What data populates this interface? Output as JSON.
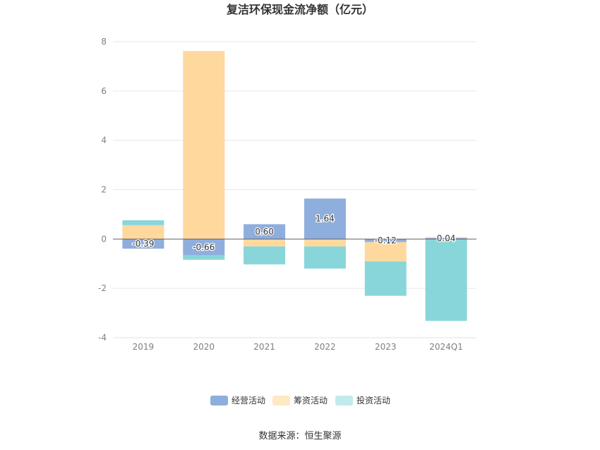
{
  "chart_data": {
    "type": "bar",
    "stacked": true,
    "title": "复洁环保现金流净额（亿元）",
    "categories": [
      "2019",
      "2020",
      "2021",
      "2022",
      "2023",
      "2024Q1"
    ],
    "series": [
      {
        "name": "经营活动",
        "color": "#8eaedd",
        "values": [
          -0.39,
          -0.66,
          0.6,
          1.64,
          -0.12,
          0.04
        ]
      },
      {
        "name": "筹资活动",
        "color": "#ffd89d",
        "values": [
          0.56,
          7.62,
          -0.3,
          -0.3,
          -0.79,
          0.04
        ]
      },
      {
        "name": "投资活动",
        "color": "#88d6d9",
        "values": [
          0.2,
          -0.18,
          -0.73,
          -0.9,
          -1.39,
          -3.32
        ]
      }
    ],
    "data_labels": [
      "-0.39",
      "-0.66",
      "0.60",
      "1.64",
      "-0.12",
      "0.04"
    ],
    "ylim": [
      -4,
      8
    ],
    "yticks": [
      "-4",
      "-2",
      "0",
      "2",
      "4",
      "6",
      "8"
    ],
    "grid": true,
    "legend": "bottom"
  },
  "source": "数据来源：恒生聚源"
}
